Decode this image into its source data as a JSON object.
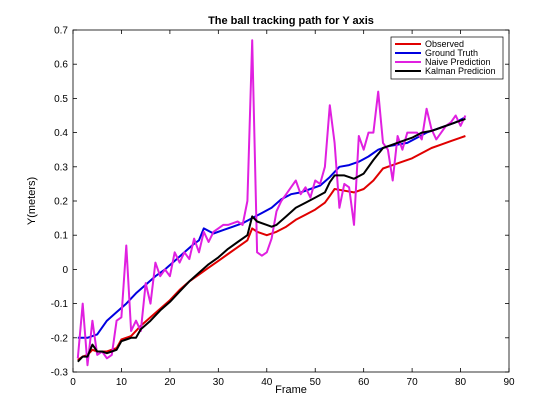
{
  "chart_data": {
    "type": "line",
    "title": "The ball tracking path for Y axis",
    "xlabel": "Frame",
    "ylabel": "Y(meters)",
    "xlim": [
      0,
      90
    ],
    "ylim": [
      -0.3,
      0.7
    ],
    "xticks": [
      0,
      10,
      20,
      30,
      40,
      50,
      60,
      70,
      80,
      90
    ],
    "yticks": [
      -0.3,
      -0.2,
      -0.1,
      0,
      0.1,
      0.2,
      0.3,
      0.4,
      0.5,
      0.6,
      0.7
    ],
    "grid": false,
    "legend_position": "top-right",
    "series": [
      {
        "name": "Observed",
        "color": "#e00000",
        "x": [
          1,
          2,
          3,
          4,
          5,
          7,
          9,
          10,
          12,
          14,
          16,
          18,
          20,
          22,
          24,
          26,
          28,
          30,
          32,
          34,
          36,
          37,
          38,
          40,
          42,
          44,
          46,
          48,
          50,
          52,
          53,
          54,
          56,
          58,
          60,
          62,
          64,
          66,
          68,
          70,
          72,
          74,
          76,
          78,
          80,
          81
        ],
        "y": [
          -0.265,
          -0.255,
          -0.25,
          -0.235,
          -0.24,
          -0.24,
          -0.23,
          -0.205,
          -0.195,
          -0.165,
          -0.14,
          -0.115,
          -0.09,
          -0.06,
          -0.035,
          -0.015,
          0.005,
          0.025,
          0.045,
          0.065,
          0.085,
          0.12,
          0.11,
          0.1,
          0.11,
          0.125,
          0.145,
          0.16,
          0.175,
          0.195,
          0.215,
          0.235,
          0.23,
          0.225,
          0.235,
          0.26,
          0.295,
          0.305,
          0.315,
          0.325,
          0.34,
          0.355,
          0.365,
          0.375,
          0.385,
          0.39
        ]
      },
      {
        "name": "Ground Truth",
        "color": "#0000e0",
        "x": [
          1,
          3,
          5,
          7,
          9,
          11,
          13,
          15,
          17,
          19,
          21,
          23,
          25,
          26,
          27,
          29,
          31,
          33,
          35,
          37,
          39,
          41,
          43,
          45,
          47,
          49,
          51,
          53,
          55,
          57,
          59,
          61,
          63,
          65,
          67,
          69,
          71,
          73,
          75,
          77,
          79,
          81
        ],
        "y": [
          -0.2,
          -0.2,
          -0.19,
          -0.15,
          -0.125,
          -0.1,
          -0.07,
          -0.045,
          -0.02,
          0.0,
          0.025,
          0.05,
          0.075,
          0.085,
          0.12,
          0.105,
          0.115,
          0.125,
          0.135,
          0.15,
          0.165,
          0.18,
          0.205,
          0.22,
          0.225,
          0.235,
          0.245,
          0.27,
          0.3,
          0.305,
          0.315,
          0.33,
          0.35,
          0.36,
          0.365,
          0.37,
          0.385,
          0.4,
          0.41,
          0.42,
          0.43,
          0.445
        ]
      },
      {
        "name": "Naive Prediction",
        "color": "#e020e0",
        "x": [
          1,
          2,
          3,
          4,
          5,
          6,
          7,
          8,
          9,
          10,
          11,
          12,
          13,
          14,
          15,
          16,
          17,
          18,
          19,
          20,
          21,
          22,
          23,
          24,
          25,
          26,
          27,
          28,
          29,
          30,
          31,
          32,
          33,
          34,
          35,
          36,
          37,
          38,
          39,
          40,
          41,
          42,
          43,
          44,
          45,
          46,
          47,
          48,
          49,
          50,
          51,
          52,
          53,
          54,
          55,
          56,
          57,
          58,
          59,
          60,
          61,
          62,
          63,
          64,
          65,
          66,
          67,
          68,
          69,
          70,
          71,
          72,
          73,
          74,
          75,
          76,
          77,
          78,
          79,
          80,
          81
        ],
        "y": [
          -0.26,
          -0.1,
          -0.28,
          -0.15,
          -0.25,
          -0.24,
          -0.26,
          -0.25,
          -0.15,
          -0.14,
          0.07,
          -0.18,
          -0.15,
          -0.18,
          -0.04,
          -0.1,
          0.02,
          -0.02,
          0.0,
          -0.02,
          0.05,
          0.02,
          0.05,
          0.03,
          0.09,
          0.05,
          0.11,
          0.08,
          0.11,
          0.12,
          0.13,
          0.13,
          0.135,
          0.14,
          0.13,
          0.2,
          0.67,
          0.05,
          0.04,
          0.05,
          0.09,
          0.17,
          0.2,
          0.22,
          0.24,
          0.26,
          0.22,
          0.24,
          0.21,
          0.26,
          0.25,
          0.3,
          0.48,
          0.37,
          0.18,
          0.25,
          0.24,
          0.13,
          0.39,
          0.35,
          0.4,
          0.4,
          0.52,
          0.37,
          0.35,
          0.26,
          0.39,
          0.35,
          0.4,
          0.4,
          0.4,
          0.38,
          0.47,
          0.41,
          0.38,
          0.4,
          0.42,
          0.43,
          0.45,
          0.42,
          0.45
        ]
      },
      {
        "name": "Kalman Predicion",
        "color": "#000000",
        "x": [
          1,
          2,
          3,
          4,
          5,
          6,
          7,
          8,
          9,
          10,
          11,
          12,
          13,
          14,
          16,
          18,
          20,
          22,
          24,
          26,
          28,
          30,
          32,
          34,
          36,
          37,
          38,
          40,
          41,
          42,
          44,
          46,
          48,
          50,
          52,
          53,
          54,
          56,
          57,
          58,
          60,
          62,
          64,
          66,
          68,
          70,
          72,
          74,
          76,
          78,
          80,
          81
        ],
        "y": [
          -0.27,
          -0.255,
          -0.255,
          -0.22,
          -0.24,
          -0.24,
          -0.245,
          -0.24,
          -0.235,
          -0.21,
          -0.205,
          -0.2,
          -0.2,
          -0.175,
          -0.15,
          -0.12,
          -0.095,
          -0.065,
          -0.035,
          -0.01,
          0.015,
          0.035,
          0.06,
          0.08,
          0.1,
          0.155,
          0.14,
          0.13,
          0.125,
          0.13,
          0.155,
          0.18,
          0.195,
          0.21,
          0.225,
          0.255,
          0.275,
          0.275,
          0.27,
          0.265,
          0.28,
          0.32,
          0.355,
          0.365,
          0.375,
          0.385,
          0.4,
          0.405,
          0.415,
          0.425,
          0.435,
          0.44
        ]
      }
    ]
  }
}
